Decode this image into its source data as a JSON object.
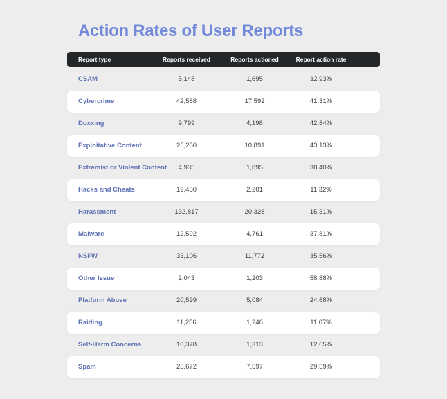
{
  "title": "Action Rates of User Reports",
  "colors": {
    "background": "#ededed",
    "title": "#7289da",
    "header_bg": "#23272a",
    "header_text": "#ffffff",
    "row_label": "#5e72b5",
    "value_text": "#3d4147",
    "row_card": "#ffffff"
  },
  "table": {
    "columns": [
      "Report type",
      "Reports received",
      "Reports actioned",
      "Report action rate"
    ],
    "rows": [
      {
        "label": "CSAM",
        "received": "5,148",
        "actioned": "1,695",
        "rate": "32.93%"
      },
      {
        "label": "Cybercrime",
        "received": "42,588",
        "actioned": "17,592",
        "rate": "41.31%"
      },
      {
        "label": "Doxxing",
        "received": "9,799",
        "actioned": "4,198",
        "rate": "42.84%"
      },
      {
        "label": "Exploitative Content",
        "received": "25,250",
        "actioned": "10,891",
        "rate": "43.13%"
      },
      {
        "label": "Extremist or Violent Content",
        "received": "4,935",
        "actioned": "1,895",
        "rate": "38.40%"
      },
      {
        "label": "Hacks and Cheats",
        "received": "19,450",
        "actioned": "2,201",
        "rate": "11.32%"
      },
      {
        "label": "Harassment",
        "received": "132,817",
        "actioned": "20,328",
        "rate": "15.31%"
      },
      {
        "label": "Malware",
        "received": "12,592",
        "actioned": "4,761",
        "rate": "37.81%"
      },
      {
        "label": "NSFW",
        "received": "33,106",
        "actioned": "11,772",
        "rate": "35.56%"
      },
      {
        "label": "Other Issue",
        "received": "2,043",
        "actioned": "1,203",
        "rate": "58.88%"
      },
      {
        "label": "Platform Abuse",
        "received": "20,599",
        "actioned": "5,084",
        "rate": "24.68%"
      },
      {
        "label": "Raiding",
        "received": "11,256",
        "actioned": "1,246",
        "rate": "11.07%"
      },
      {
        "label": "Self-Harm Concerns",
        "received": "10,378",
        "actioned": "1,313",
        "rate": "12.65%"
      },
      {
        "label": "Spam",
        "received": "25,672",
        "actioned": "7,597",
        "rate": "29.59%"
      }
    ]
  },
  "chart_data": {
    "type": "table",
    "title": "Action Rates of User Reports",
    "columns": [
      "Report type",
      "Reports received",
      "Reports actioned",
      "Report action rate"
    ],
    "rows": [
      [
        "CSAM",
        5148,
        1695,
        32.93
      ],
      [
        "Cybercrime",
        42588,
        17592,
        41.31
      ],
      [
        "Doxxing",
        9799,
        4198,
        42.84
      ],
      [
        "Exploitative Content",
        25250,
        10891,
        43.13
      ],
      [
        "Extremist or Violent Content",
        4935,
        1895,
        38.4
      ],
      [
        "Hacks and Cheats",
        19450,
        2201,
        11.32
      ],
      [
        "Harassment",
        132817,
        20328,
        15.31
      ],
      [
        "Malware",
        12592,
        4761,
        37.81
      ],
      [
        "NSFW",
        33106,
        11772,
        35.56
      ],
      [
        "Other Issue",
        2043,
        1203,
        58.88
      ],
      [
        "Platform Abuse",
        20599,
        5084,
        24.68
      ],
      [
        "Raiding",
        11256,
        1246,
        11.07
      ],
      [
        "Self-Harm Concerns",
        10378,
        1313,
        12.65
      ],
      [
        "Spam",
        25672,
        7597,
        29.59
      ]
    ]
  }
}
